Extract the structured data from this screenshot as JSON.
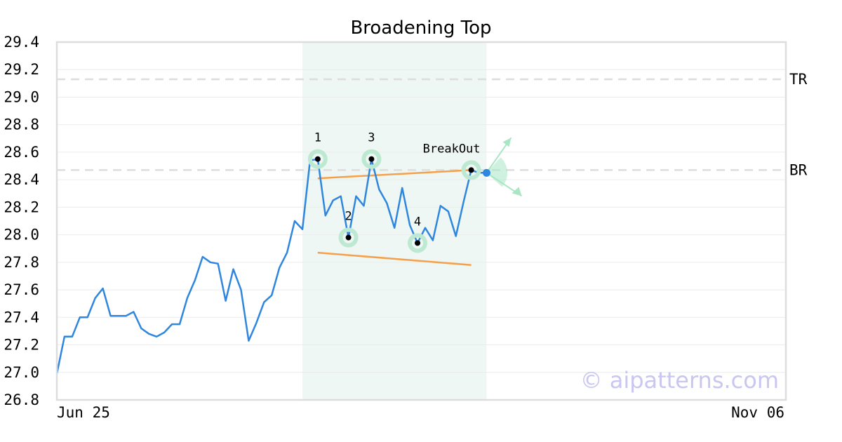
{
  "chart_data": {
    "type": "line",
    "title": "Broadening Top",
    "xlabel": "",
    "ylabel": "",
    "ylim": [
      26.8,
      29.4
    ],
    "yticks": [
      26.8,
      27.0,
      27.2,
      27.4,
      27.6,
      27.8,
      28.0,
      28.2,
      28.4,
      28.6,
      28.8,
      29.0,
      29.2,
      29.4
    ],
    "x_start_label": "Jun 25",
    "x_end_label": "Nov 06",
    "grid": true,
    "colors": {
      "price": "#2e86de",
      "trendline": "#f5a04a",
      "highlight": "#eef7f3",
      "pivot_ring": "#bde9d2",
      "arrow": "#a8e6c4",
      "refline": "#dddddd",
      "watermark": "#c9c6f2"
    },
    "series": [
      {
        "values": [
          26.99,
          27.26,
          27.26,
          27.4,
          27.4,
          27.54,
          27.61,
          27.41,
          27.41,
          27.41,
          27.44,
          27.32,
          27.28,
          27.26,
          27.29,
          27.35,
          27.35,
          27.54,
          27.67,
          27.84,
          27.8,
          27.79,
          27.52,
          27.75,
          27.6,
          27.23,
          27.36,
          27.51,
          27.56,
          27.76,
          27.87,
          28.1,
          28.04,
          28.54,
          28.55,
          28.14,
          28.25,
          28.28,
          27.98,
          28.28,
          28.21,
          28.55,
          28.33,
          28.23,
          28.05,
          28.34,
          28.07,
          27.94,
          28.05,
          27.96,
          28.21,
          28.17,
          27.99,
          28.24,
          28.47,
          28.45,
          28.45
        ]
      }
    ],
    "x_total": 95,
    "highlight_range": [
      32,
      56
    ],
    "pivots": [
      {
        "label": "1",
        "x": 34,
        "y": 28.55
      },
      {
        "label": "2",
        "x": 38,
        "y": 27.98
      },
      {
        "label": "3",
        "x": 41,
        "y": 28.55
      },
      {
        "label": "4",
        "x": 47,
        "y": 27.94
      }
    ],
    "breakout": {
      "label": "BreakOut",
      "x": 54,
      "y": 28.47
    },
    "projection_point": {
      "x": 56,
      "y": 28.45
    },
    "trendlines": [
      {
        "x1": 34,
        "y1": 28.41,
        "x2": 54,
        "y2": 28.47
      },
      {
        "x1": 34,
        "y1": 27.87,
        "x2": 54,
        "y2": 27.78
      }
    ],
    "ref_lines": [
      {
        "label": "TR",
        "y": 29.13
      },
      {
        "label": "BR",
        "y": 28.47
      }
    ],
    "watermark": "© aipatterns.com"
  }
}
